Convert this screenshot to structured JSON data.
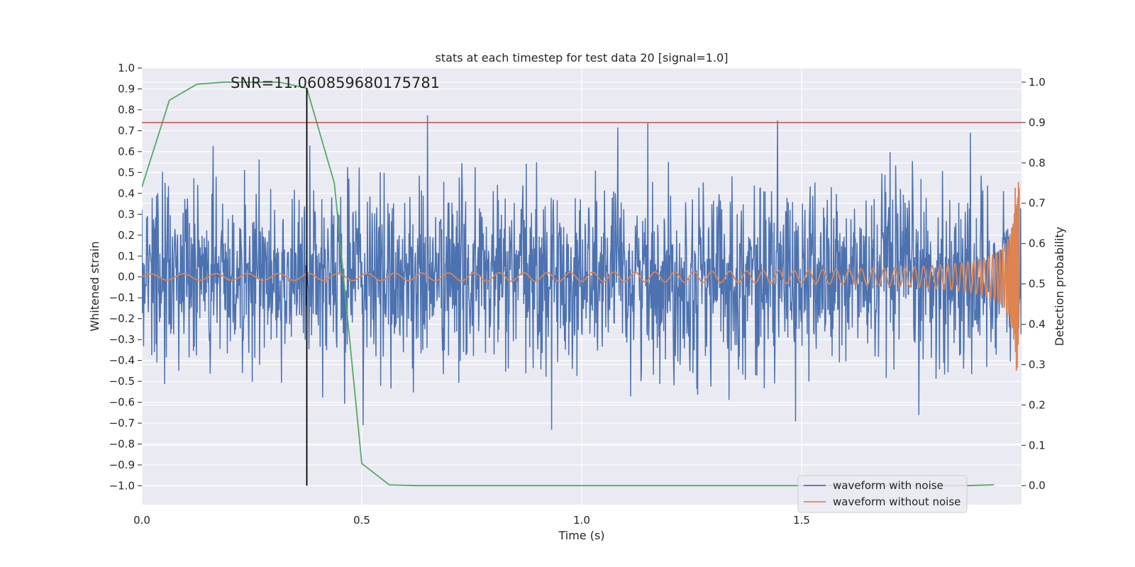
{
  "chart_data": {
    "type": "line",
    "title": "stats at each timestep for test data 20 [signal=1.0]",
    "xlabel": "Time (s)",
    "ylabel": "Whitened strain",
    "y2label": "Detection probability",
    "xlim": [
      0.0,
      2.0
    ],
    "ylim": [
      -1.09,
      1.0
    ],
    "y2lim": [
      -0.047,
      1.035
    ],
    "grid": true,
    "legend_placement": "lower-right",
    "x_ticks": [
      0.0,
      0.5,
      1.0,
      1.5
    ],
    "x_tick_labels": [
      "0.0",
      "0.5",
      "1.0",
      "1.5"
    ],
    "y_ticks": [
      1.0,
      0.9,
      0.8,
      0.7,
      0.6,
      0.5,
      0.4,
      0.3,
      0.2,
      0.1,
      0.0,
      -0.1,
      -0.2,
      -0.3,
      -0.4,
      -0.5,
      -0.6,
      -0.7,
      -0.8,
      -0.9,
      -1.0
    ],
    "y_tick_labels": [
      "1.0",
      "0.9",
      "0.8",
      "0.7",
      "0.6",
      "0.5",
      "0.4",
      "0.3",
      "0.2",
      "0.1",
      "0.0",
      "−0.1",
      "−0.2",
      "−0.3",
      "−0.4",
      "−0.5",
      "−0.6",
      "−0.7",
      "−0.8",
      "−0.9",
      "−1.0"
    ],
    "y2_ticks": [
      1.0,
      0.9,
      0.8,
      0.7,
      0.6,
      0.5,
      0.4,
      0.3,
      0.2,
      0.1,
      0.0
    ],
    "y2_tick_labels": [
      "1.0",
      "0.9",
      "0.8",
      "0.7",
      "0.6",
      "0.5",
      "0.4",
      "0.3",
      "0.2",
      "0.1",
      "0.0"
    ],
    "annotation": "SNR=11.060859680175781",
    "series": [
      {
        "name": "waveform with noise",
        "color": "#4c72b0",
        "axis": "left",
        "kind": "noise",
        "n_points": 2048,
        "approx_std": 0.22,
        "approx_range": [
          -1.0,
          0.91
        ],
        "note_values": "dense random noise around 0"
      },
      {
        "name": "waveform without noise",
        "color": "#dd8452",
        "axis": "left",
        "kind": "chirp",
        "amplitude_start": 0.015,
        "amplitude_end": 0.57,
        "merger_time": 1.99
      },
      {
        "color": "#55a868",
        "axis": "right",
        "x": [
          0.0,
          0.0625,
          0.125,
          0.1875,
          0.25,
          0.3125,
          0.375,
          0.4375,
          0.5,
          0.5625,
          0.625,
          0.6875,
          0.75,
          0.8125,
          0.875,
          0.9375,
          1.0,
          1.0625,
          1.125,
          1.1875,
          1.25,
          1.3125,
          1.375,
          1.4375,
          1.5,
          1.5625,
          1.625,
          1.6875,
          1.75,
          1.8125,
          1.875,
          1.9375
        ],
        "y": [
          0.74,
          0.955,
          0.995,
          1.0,
          1.0,
          1.0,
          0.985,
          0.75,
          0.055,
          0.002,
          0.0,
          0.0,
          0.0,
          0.0,
          0.0,
          0.0,
          0.0,
          0.0,
          0.0,
          0.0,
          0.0,
          0.0,
          0.0,
          0.0,
          0.0,
          0.0,
          0.0,
          0.0,
          0.0,
          0.0,
          0.0,
          0.002
        ]
      }
    ],
    "threshold_line": {
      "axis": "right",
      "value": 0.9,
      "color": "#c44e52"
    },
    "vertical_line": {
      "x": 0.375,
      "y_from": 0.0,
      "y_to": 0.985,
      "axis": "right",
      "color": "#000000"
    }
  }
}
